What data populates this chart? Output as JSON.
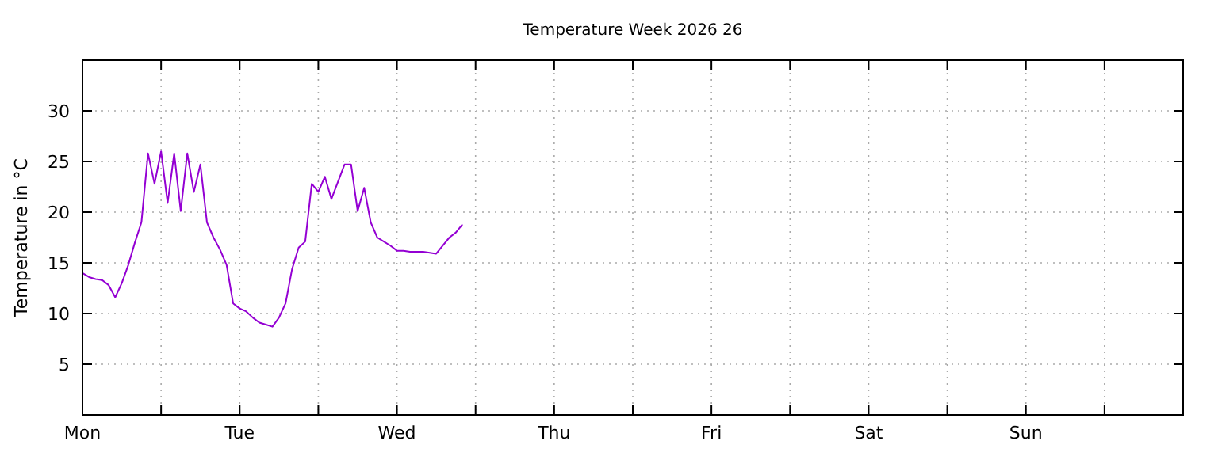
{
  "chart_data": {
    "type": "line",
    "title": "Temperature Week 2026 26",
    "ylabel": "Temperature in °C",
    "categories": [
      "Mon",
      null,
      null,
      null,
      null,
      null,
      null,
      null,
      null,
      null,
      null,
      null,
      null,
      null,
      null,
      null,
      null,
      null,
      null,
      null,
      null,
      null,
      null,
      null,
      "Tue",
      null,
      null,
      null,
      null,
      null,
      null,
      null,
      null,
      null,
      null,
      null,
      null,
      null,
      null,
      null,
      null,
      null,
      null,
      null,
      null,
      null,
      null,
      null,
      "Wed",
      null,
      null,
      null,
      null,
      null,
      null,
      null,
      null,
      null,
      null,
      null,
      null,
      null,
      null,
      null,
      null,
      null,
      null,
      null,
      null,
      null,
      null,
      null,
      "Thu",
      null,
      null,
      null,
      null,
      null,
      null,
      null,
      null,
      null,
      null,
      null,
      null,
      null,
      null,
      null,
      null,
      null,
      null,
      null,
      null,
      null,
      null,
      null,
      "Fri",
      null,
      null,
      null,
      null,
      null,
      null,
      null,
      null,
      null,
      null,
      null,
      null,
      null,
      null,
      null,
      null,
      null,
      null,
      null,
      null,
      null,
      null,
      null,
      "Sat",
      null,
      null,
      null,
      null,
      null,
      null,
      null,
      null,
      null,
      null,
      null,
      null,
      null,
      null,
      null,
      null,
      null,
      null,
      null,
      null,
      null,
      null,
      null,
      "Sun",
      null,
      null,
      null,
      null,
      null,
      null,
      null,
      null,
      null,
      null,
      null,
      null,
      null,
      null,
      null,
      null,
      null,
      null,
      null,
      null,
      null,
      null,
      null
    ],
    "ylim": [
      0,
      35
    ],
    "yticks": [
      5,
      10,
      15,
      20,
      25,
      30
    ],
    "grid": true,
    "marker": "none",
    "line_style": "solid",
    "series": [
      {
        "color": "#9400d3",
        "values": [
          14.0,
          13.6,
          13.4,
          13.3,
          12.8,
          11.6,
          13.0,
          14.8,
          17.0,
          19.0,
          25.8,
          22.8,
          26.0,
          20.9,
          25.8,
          20.1,
          25.8,
          22.0,
          24.7,
          19.0,
          17.5,
          16.3,
          14.8,
          11.0,
          10.5,
          10.2,
          9.6,
          9.1,
          8.9,
          8.7,
          9.6,
          11.0,
          14.4,
          16.5,
          17.1,
          22.8,
          22.0,
          23.5,
          21.3,
          23.0,
          24.7,
          24.7,
          20.1,
          22.4,
          19.0,
          17.5,
          17.1,
          16.7,
          16.2,
          16.2,
          16.1,
          16.1,
          16.1,
          16.0,
          15.9,
          16.7,
          17.5,
          18.0,
          18.8,
          null,
          null,
          null,
          null,
          null,
          null,
          null,
          null,
          null,
          null,
          null,
          null,
          null,
          null,
          null,
          null,
          null,
          null,
          null,
          null,
          null,
          null,
          null,
          null,
          null,
          null,
          null,
          null,
          null,
          null,
          null,
          null,
          null,
          null,
          null,
          null,
          null,
          null,
          null,
          null,
          null,
          null,
          null,
          null,
          null,
          null,
          null,
          null,
          null,
          null,
          null,
          null,
          null,
          null,
          null,
          null,
          null,
          null,
          null,
          null,
          null,
          null,
          null,
          null,
          null,
          null,
          null,
          null,
          null,
          null,
          null,
          null,
          null,
          null,
          null,
          null,
          null,
          null,
          null,
          null,
          null,
          null,
          null,
          null,
          null,
          null,
          null,
          null,
          null,
          null,
          null,
          null,
          null,
          null,
          null,
          null,
          null,
          null,
          null,
          null,
          null,
          null,
          null,
          null,
          null,
          null,
          null,
          null,
          null
        ]
      }
    ]
  }
}
